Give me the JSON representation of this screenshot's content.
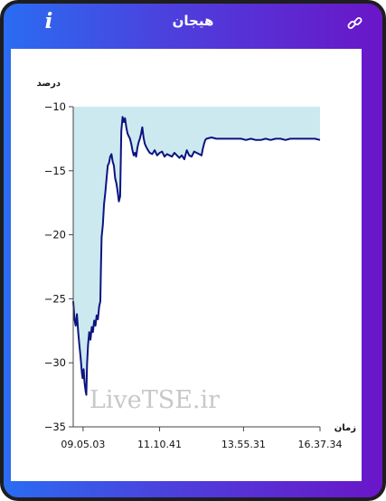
{
  "header": {
    "title": "هیجان",
    "info_label": "i",
    "info_icon": "info-icon",
    "link_icon": "link-icon"
  },
  "colors": {
    "gradient_start": "#2a6cf2",
    "gradient_end": "#6a16c8",
    "line": "#0c1480",
    "area_fill": "#cde9f0"
  },
  "watermark": "LiveTSE.ir",
  "chart_data": {
    "type": "area",
    "ylabel": "درصد",
    "xlabel": "زمان",
    "ylim": [
      -35,
      -10
    ],
    "yticks": [
      -10,
      -15,
      -20,
      -25,
      -30,
      -35
    ],
    "ytick_labels": [
      "−10",
      "−15",
      "−20",
      "−25",
      "−30",
      "−35"
    ],
    "xlim": [
      0,
      1
    ],
    "xticks": [
      0.04,
      0.35,
      0.69,
      1.0
    ],
    "xtick_labels": [
      "09.05.03",
      "11.10.41",
      "13.55.31",
      "16.37.34"
    ],
    "grid": false,
    "series": [
      {
        "values": [
          [
            0.0,
            -25.2
          ],
          [
            0.005,
            -26.6
          ],
          [
            0.01,
            -27.1
          ],
          [
            0.015,
            -26.2
          ],
          [
            0.02,
            -27.6
          ],
          [
            0.025,
            -28.6
          ],
          [
            0.03,
            -29.6
          ],
          [
            0.035,
            -30.8
          ],
          [
            0.038,
            -31.2
          ],
          [
            0.042,
            -30.5
          ],
          [
            0.046,
            -31.6
          ],
          [
            0.05,
            -32.2
          ],
          [
            0.053,
            -32.5
          ],
          [
            0.056,
            -30.1
          ],
          [
            0.06,
            -28.6
          ],
          [
            0.065,
            -27.6
          ],
          [
            0.07,
            -28.2
          ],
          [
            0.075,
            -27.2
          ],
          [
            0.08,
            -27.6
          ],
          [
            0.085,
            -26.7
          ],
          [
            0.09,
            -27.1
          ],
          [
            0.095,
            -26.3
          ],
          [
            0.1,
            -26.6
          ],
          [
            0.105,
            -25.6
          ],
          [
            0.11,
            -25.2
          ],
          [
            0.112,
            -22.8
          ],
          [
            0.115,
            -20.2
          ],
          [
            0.12,
            -19.2
          ],
          [
            0.125,
            -17.6
          ],
          [
            0.13,
            -16.7
          ],
          [
            0.135,
            -15.6
          ],
          [
            0.14,
            -14.6
          ],
          [
            0.145,
            -14.4
          ],
          [
            0.15,
            -13.9
          ],
          [
            0.155,
            -13.7
          ],
          [
            0.16,
            -14.3
          ],
          [
            0.165,
            -14.6
          ],
          [
            0.17,
            -15.6
          ],
          [
            0.175,
            -16.0
          ],
          [
            0.18,
            -16.6
          ],
          [
            0.185,
            -17.4
          ],
          [
            0.19,
            -17.0
          ],
          [
            0.195,
            -11.9
          ],
          [
            0.2,
            -10.8
          ],
          [
            0.205,
            -11.2
          ],
          [
            0.21,
            -10.9
          ],
          [
            0.215,
            -11.6
          ],
          [
            0.22,
            -12.1
          ],
          [
            0.225,
            -12.3
          ],
          [
            0.23,
            -12.5
          ],
          [
            0.235,
            -12.9
          ],
          [
            0.24,
            -13.4
          ],
          [
            0.245,
            -13.8
          ],
          [
            0.25,
            -13.6
          ],
          [
            0.255,
            -13.9
          ],
          [
            0.26,
            -13.2
          ],
          [
            0.265,
            -12.8
          ],
          [
            0.27,
            -12.5
          ],
          [
            0.275,
            -12.1
          ],
          [
            0.28,
            -11.6
          ],
          [
            0.285,
            -12.4
          ],
          [
            0.29,
            -12.9
          ],
          [
            0.295,
            -13.1
          ],
          [
            0.3,
            -13.3
          ],
          [
            0.31,
            -13.6
          ],
          [
            0.32,
            -13.7
          ],
          [
            0.33,
            -13.4
          ],
          [
            0.34,
            -13.8
          ],
          [
            0.35,
            -13.6
          ],
          [
            0.36,
            -13.5
          ],
          [
            0.37,
            -13.9
          ],
          [
            0.38,
            -13.7
          ],
          [
            0.39,
            -13.8
          ],
          [
            0.4,
            -13.9
          ],
          [
            0.41,
            -13.6
          ],
          [
            0.42,
            -13.8
          ],
          [
            0.43,
            -14.0
          ],
          [
            0.44,
            -13.8
          ],
          [
            0.45,
            -14.1
          ],
          [
            0.46,
            -13.4
          ],
          [
            0.47,
            -13.8
          ],
          [
            0.48,
            -13.9
          ],
          [
            0.49,
            -13.5
          ],
          [
            0.5,
            -13.6
          ],
          [
            0.51,
            -13.7
          ],
          [
            0.52,
            -13.8
          ],
          [
            0.525,
            -13.3
          ],
          [
            0.53,
            -12.9
          ],
          [
            0.535,
            -12.6
          ],
          [
            0.54,
            -12.5
          ],
          [
            0.56,
            -12.4
          ],
          [
            0.58,
            -12.5
          ],
          [
            0.6,
            -12.5
          ],
          [
            0.62,
            -12.5
          ],
          [
            0.64,
            -12.5
          ],
          [
            0.66,
            -12.5
          ],
          [
            0.68,
            -12.5
          ],
          [
            0.7,
            -12.6
          ],
          [
            0.72,
            -12.5
          ],
          [
            0.74,
            -12.6
          ],
          [
            0.76,
            -12.6
          ],
          [
            0.78,
            -12.5
          ],
          [
            0.8,
            -12.6
          ],
          [
            0.82,
            -12.5
          ],
          [
            0.84,
            -12.5
          ],
          [
            0.86,
            -12.6
          ],
          [
            0.88,
            -12.5
          ],
          [
            0.9,
            -12.5
          ],
          [
            0.92,
            -12.5
          ],
          [
            0.94,
            -12.5
          ],
          [
            0.96,
            -12.5
          ],
          [
            0.98,
            -12.5
          ],
          [
            1.0,
            -12.6
          ]
        ]
      }
    ]
  }
}
